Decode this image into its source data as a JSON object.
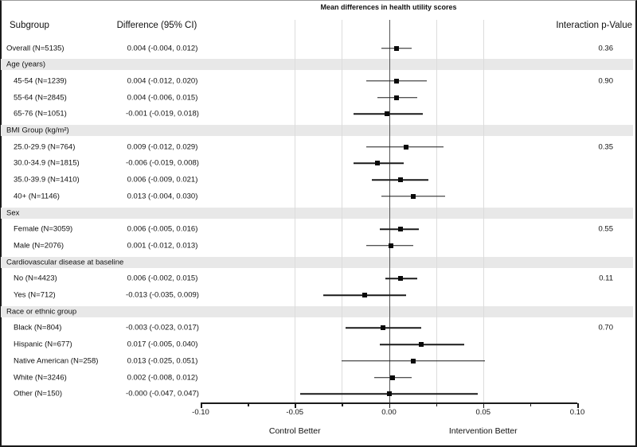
{
  "title": "Mean differences in health utility scores",
  "columns": {
    "subgroup": "Subgroup",
    "difference": "Difference (95% CI)",
    "interaction": "Interaction p-Value"
  },
  "axis": {
    "left_label": "Control Better",
    "right_label": "Intervention Better",
    "major_ticks": [
      {
        "label": "-0.10",
        "value": -0.1
      },
      {
        "label": "-0.05",
        "value": -0.05
      },
      {
        "label": "0.00",
        "value": 0.0
      },
      {
        "label": "0.05",
        "value": 0.05
      },
      {
        "label": "0.10",
        "value": 0.1
      }
    ],
    "minor_tick_values": [
      -0.075,
      -0.025,
      0.025,
      0.075
    ],
    "gridline_values": [
      -0.05,
      -0.025,
      0.025,
      0.05
    ],
    "zero_value": 0
  },
  "colors": {
    "band": "#e8e8e8",
    "grid": "#dcdcdc",
    "ink": "#111111",
    "zero_line": "#555555"
  },
  "chart_data": {
    "type": "scatter",
    "variant": "forest-plot",
    "title": "Mean differences in health utility scores",
    "xlim": [
      -0.1,
      0.1
    ],
    "xlabel_left": "Control Better",
    "xlabel_right": "Intervention Better",
    "legend": "none",
    "grid": "light vertical gridlines at -0.05, -0.025, 0.025, 0.05 plus dark zero reference line",
    "rows": [
      {
        "type": "data",
        "indent": 0,
        "label": "Overall (N=5135)",
        "diff_text": "0.004 (-0.004, 0.012)",
        "value": 0.004,
        "lo": -0.004,
        "hi": 0.012,
        "pvalue": "0.36"
      },
      {
        "type": "band",
        "label": "Age (years)"
      },
      {
        "type": "data",
        "indent": 1,
        "label": "45-54 (N=1239)",
        "diff_text": "0.004 (-0.012, 0.020)",
        "value": 0.004,
        "lo": -0.012,
        "hi": 0.02,
        "pvalue": "0.90"
      },
      {
        "type": "data",
        "indent": 1,
        "label": "55-64 (N=2845)",
        "diff_text": "0.004 (-0.006, 0.015)",
        "value": 0.004,
        "lo": -0.006,
        "hi": 0.015,
        "pvalue": ""
      },
      {
        "type": "data",
        "indent": 1,
        "label": "65-76 (N=1051)",
        "diff_text": "-0.001 (-0.019, 0.018)",
        "value": -0.001,
        "lo": -0.019,
        "hi": 0.018,
        "pvalue": ""
      },
      {
        "type": "band",
        "label": "BMI Group (kg/m²)"
      },
      {
        "type": "data",
        "indent": 1,
        "label": "25.0-29.9 (N=764)",
        "diff_text": "0.009 (-0.012, 0.029)",
        "value": 0.009,
        "lo": -0.012,
        "hi": 0.029,
        "pvalue": "0.35"
      },
      {
        "type": "data",
        "indent": 1,
        "label": "30.0-34.9 (N=1815)",
        "diff_text": "-0.006 (-0.019, 0.008)",
        "value": -0.006,
        "lo": -0.019,
        "hi": 0.008,
        "pvalue": ""
      },
      {
        "type": "data",
        "indent": 1,
        "label": "35.0-39.9 (N=1410)",
        "diff_text": "0.006 (-0.009, 0.021)",
        "value": 0.006,
        "lo": -0.009,
        "hi": 0.021,
        "pvalue": ""
      },
      {
        "type": "data",
        "indent": 1,
        "label": "40+ (N=1146)",
        "diff_text": "0.013 (-0.004, 0.030)",
        "value": 0.013,
        "lo": -0.004,
        "hi": 0.03,
        "pvalue": ""
      },
      {
        "type": "band",
        "label": "Sex"
      },
      {
        "type": "data",
        "indent": 1,
        "label": "Female (N=3059)",
        "diff_text": "0.006 (-0.005, 0.016)",
        "value": 0.006,
        "lo": -0.005,
        "hi": 0.016,
        "pvalue": "0.55"
      },
      {
        "type": "data",
        "indent": 1,
        "label": "Male (N=2076)",
        "diff_text": "0.001 (-0.012, 0.013)",
        "value": 0.001,
        "lo": -0.012,
        "hi": 0.013,
        "pvalue": ""
      },
      {
        "type": "band",
        "label": "Cardiovascular disease at baseline"
      },
      {
        "type": "data",
        "indent": 1,
        "label": "No (N=4423)",
        "diff_text": "0.006 (-0.002, 0.015)",
        "value": 0.006,
        "lo": -0.002,
        "hi": 0.015,
        "pvalue": "0.11"
      },
      {
        "type": "data",
        "indent": 1,
        "label": "Yes (N=712)",
        "diff_text": "-0.013 (-0.035, 0.009)",
        "value": -0.013,
        "lo": -0.035,
        "hi": 0.009,
        "pvalue": ""
      },
      {
        "type": "band",
        "label": "Race or ethnic group"
      },
      {
        "type": "data",
        "indent": 1,
        "label": "Black (N=804)",
        "diff_text": "-0.003 (-0.023, 0.017)",
        "value": -0.003,
        "lo": -0.023,
        "hi": 0.017,
        "pvalue": "0.70"
      },
      {
        "type": "data",
        "indent": 1,
        "label": "Hispanic (N=677)",
        "diff_text": "0.017 (-0.005, 0.040)",
        "value": 0.017,
        "lo": -0.005,
        "hi": 0.04,
        "pvalue": ""
      },
      {
        "type": "data",
        "indent": 1,
        "label": "Native American (N=258)",
        "diff_text": "0.013 (-0.025, 0.051)",
        "value": 0.013,
        "lo": -0.025,
        "hi": 0.051,
        "pvalue": ""
      },
      {
        "type": "data",
        "indent": 1,
        "label": "White (N=3246)",
        "diff_text": "0.002 (-0.008, 0.012)",
        "value": 0.002,
        "lo": -0.008,
        "hi": 0.012,
        "pvalue": ""
      },
      {
        "type": "data",
        "indent": 1,
        "label": "Other (N=150)",
        "diff_text": "-0.000 (-0.047, 0.047)",
        "value": 0.0,
        "lo": -0.047,
        "hi": 0.047,
        "pvalue": ""
      }
    ]
  }
}
